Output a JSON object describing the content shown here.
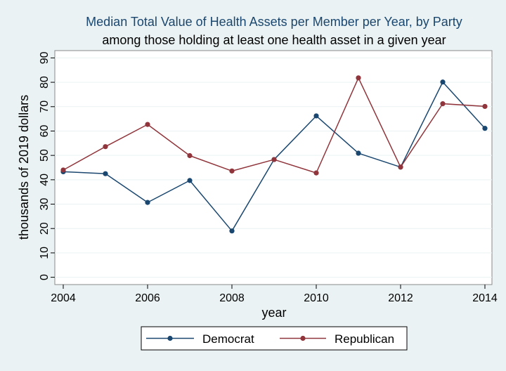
{
  "chart_data": {
    "type": "line",
    "title": "Median Total Value of Health Assets per Member per Year, by Party",
    "subtitle": "among those holding at least one health asset in a given year",
    "xlabel": "year",
    "ylabel": "thousands of 2019 dollars",
    "x": [
      2004,
      2005,
      2006,
      2007,
      2008,
      2009,
      2010,
      2011,
      2012,
      2013,
      2014
    ],
    "xticks": [
      "2004",
      "2006",
      "2008",
      "2010",
      "2012",
      "2014"
    ],
    "xtick_values": [
      2004,
      2006,
      2008,
      2010,
      2012,
      2014
    ],
    "yticks": [
      "0",
      "10",
      "20",
      "30",
      "40",
      "50",
      "60",
      "70",
      "80",
      "90"
    ],
    "ytick_values": [
      0,
      10,
      20,
      30,
      40,
      50,
      60,
      70,
      80,
      90
    ],
    "xlim": [
      2004,
      2014
    ],
    "ylim": [
      -3,
      93
    ],
    "grid": true,
    "legend_position": "bottom",
    "series": [
      {
        "name": "Democrat",
        "color": "#1a476f",
        "values": [
          43.3,
          42.5,
          30.7,
          39.7,
          19.0,
          48.3,
          66.2,
          50.9,
          45.2,
          80.1,
          61.1
        ]
      },
      {
        "name": "Republican",
        "color": "#90353b",
        "values": [
          44.0,
          53.6,
          62.7,
          49.9,
          43.6,
          48.3,
          42.8,
          81.8,
          45.2,
          71.2,
          70.1
        ]
      }
    ],
    "colors": {
      "title": "#1a476f",
      "subtitle": "#000000",
      "background": "#eaf2f3",
      "plot_background": "#ffffff",
      "grid": "#eaf2f3"
    }
  }
}
